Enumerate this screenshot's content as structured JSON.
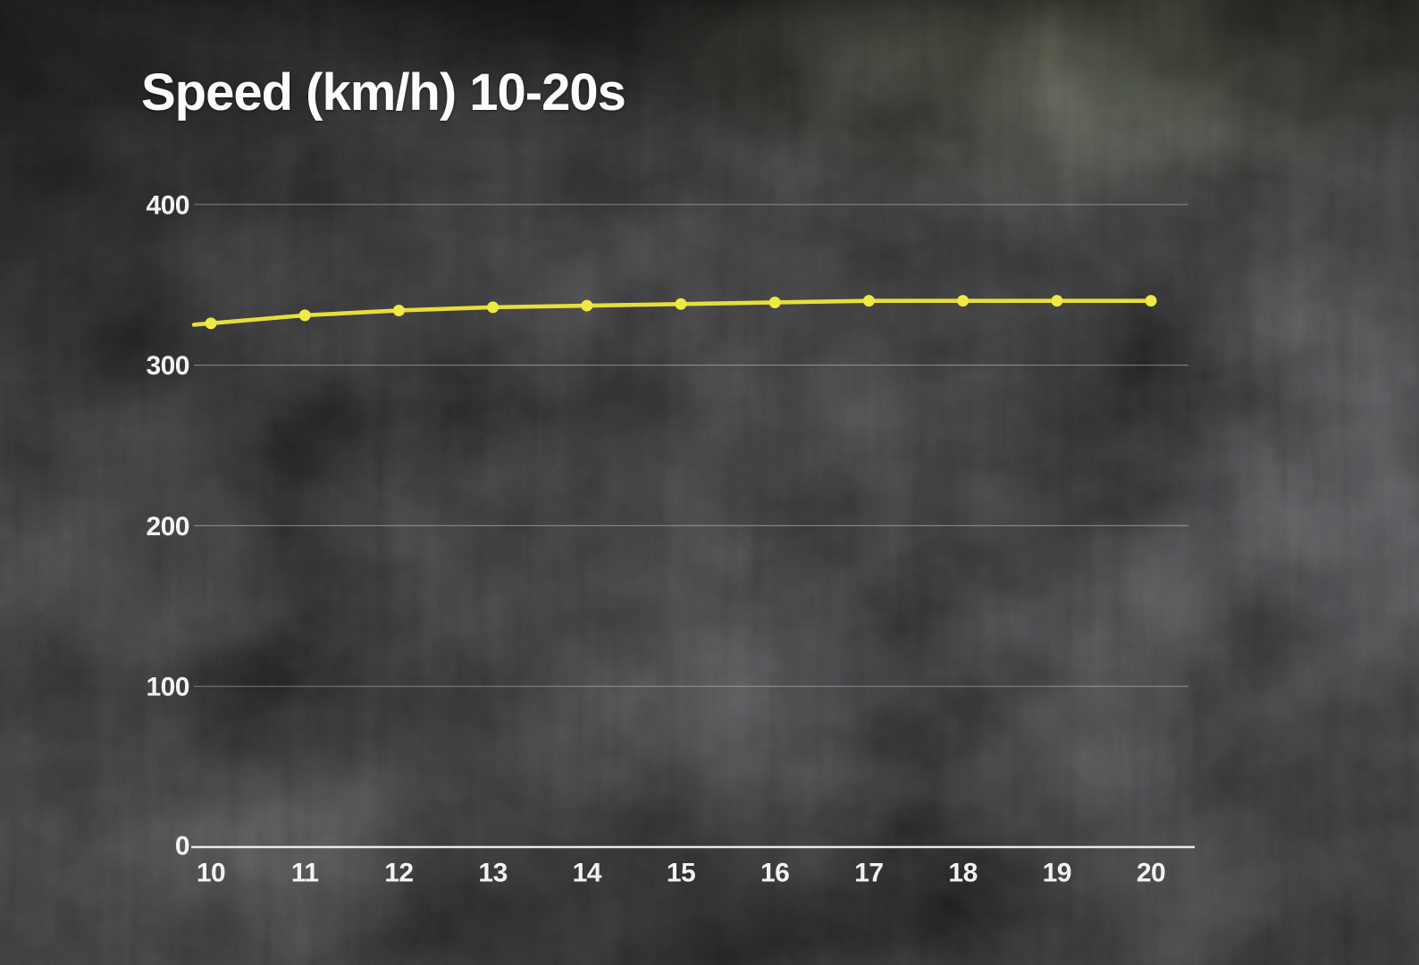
{
  "title": "Speed (km/h) 10-20s",
  "colors": {
    "line": "#e6df3b",
    "marker": "#efe944",
    "text": "#f3f3f1",
    "grid": "rgba(255,255,255,0.34)",
    "axis": "rgba(243,243,241,0.95)",
    "background": "#1c1c1d"
  },
  "chart_data": {
    "type": "line",
    "title": "Speed (km/h) 10-20s",
    "x": [
      10,
      11,
      12,
      13,
      14,
      15,
      16,
      17,
      18,
      19,
      20
    ],
    "series": [
      {
        "name": "Speed (km/h)",
        "values": [
          326,
          331,
          334,
          336,
          337,
          338,
          339,
          340,
          340,
          340,
          340
        ]
      }
    ],
    "xticks": [
      "10",
      "11",
      "12",
      "13",
      "14",
      "15",
      "16",
      "17",
      "18",
      "19",
      "20"
    ],
    "yticks": [
      "0",
      "100",
      "200",
      "300",
      "400"
    ],
    "xlim": [
      10,
      20
    ],
    "ylim": [
      0,
      400
    ],
    "grid": true,
    "legend_position": "none",
    "marker": "circle",
    "xlabel": "",
    "ylabel": ""
  }
}
